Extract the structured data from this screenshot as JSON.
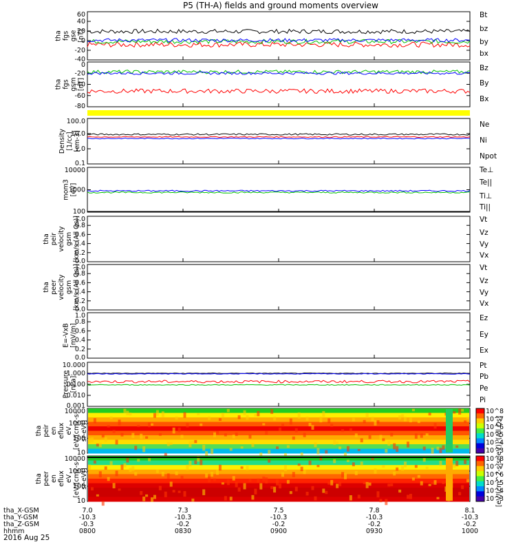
{
  "title": "P5 (TH-A) fields and ground moments overview",
  "date": "2016 Aug 25",
  "chart_data": [
    {
      "id": "p1",
      "type": "line",
      "ylabel": [
        "tha",
        "fgs",
        "gse",
        "[nT]"
      ],
      "yticks": [
        "60",
        "40",
        "20",
        "0",
        "-20",
        "-40"
      ],
      "ylim": [
        -45,
        65
      ],
      "series": [
        {
          "name": "Bt",
          "color": "#000000",
          "base": 20,
          "amp": 5
        },
        {
          "name": "bz",
          "color": "#ff0000",
          "base": -10,
          "amp": 6
        },
        {
          "name": "by",
          "color": "#00c000",
          "base": -3,
          "amp": 5
        },
        {
          "name": "bx",
          "color": "#0000ff",
          "base": 0,
          "amp": 4
        }
      ]
    },
    {
      "id": "p2",
      "type": "line",
      "ylabel": [
        "tha",
        "fgs",
        "gsm",
        "[nT]"
      ],
      "yticks": [
        "0",
        "-20",
        "-40",
        "-60",
        "-80"
      ],
      "ylim": [
        -90,
        10
      ],
      "series": [
        {
          "name": "Bz",
          "color": "#ff0000",
          "base": -55,
          "amp": 5
        },
        {
          "name": "By",
          "color": "#00c000",
          "base": -12,
          "amp": 4
        },
        {
          "name": "Bx",
          "color": "#0000ff",
          "base": -15,
          "amp": 3
        }
      ]
    },
    {
      "id": "p3",
      "type": "bar",
      "label": "",
      "color": "#ffff00"
    },
    {
      "id": "p4",
      "type": "line",
      "ylabel": [
        "Density",
        "[1/cc]",
        "[cm-3]"
      ],
      "yticks": [
        "100.0",
        "10.0",
        "1.0",
        "0.1"
      ],
      "log": true,
      "series": [
        {
          "name": "Ne",
          "color": "#ff0000",
          "base": 0.78,
          "amp": 0.03
        },
        {
          "name": "Ni",
          "color": "#000000",
          "base": 0.95,
          "amp": 0.05
        },
        {
          "name": "Npot",
          "color": "#0000ff",
          "base": 0.68,
          "amp": 0.03
        }
      ]
    },
    {
      "id": "p5",
      "type": "line",
      "ylabel": [
        "mom3",
        "[eV]"
      ],
      "yticks": [
        "10000",
        "1000",
        "100"
      ],
      "log": true,
      "series": [
        {
          "name": "Te⊥",
          "color": "#ff0000",
          "base": 1.9,
          "amp": 0.03
        },
        {
          "name": "Te||",
          "color": "#000000",
          "base": 1.75,
          "amp": 0.03
        },
        {
          "name": "Ti⊥",
          "color": "#0000ff",
          "base": 2.95,
          "amp": 0.03
        },
        {
          "name": "Ti||",
          "color": "#00c000",
          "base": 2.88,
          "amp": 0.03
        }
      ]
    },
    {
      "id": "p6",
      "type": "line",
      "ylabel": [
        "tha",
        "peir",
        "velocity",
        "gsm",
        "[km/s (All Qs)]"
      ],
      "yticks": [
        "1.0",
        "0.8",
        "0.6",
        "0.4",
        "0.2",
        "0.0"
      ],
      "series": [
        {
          "name": "Vt",
          "color": "#000000"
        },
        {
          "name": "Vz",
          "color": "#ff0000"
        },
        {
          "name": "Vy",
          "color": "#00c000"
        },
        {
          "name": "Vx",
          "color": "#0000ff"
        }
      ]
    },
    {
      "id": "p7",
      "type": "line",
      "ylabel": [
        "tha",
        "peer",
        "velocity",
        "gsm",
        "[km/s (All Qs)]"
      ],
      "yticks": [
        "1.0",
        "0.8",
        "0.6",
        "0.4",
        "0.2",
        "0.0"
      ],
      "series": [
        {
          "name": "Vt",
          "color": "#000000"
        },
        {
          "name": "Vz",
          "color": "#ff0000"
        },
        {
          "name": "Vy",
          "color": "#00c000"
        },
        {
          "name": "Vx",
          "color": "#0000ff"
        }
      ]
    },
    {
      "id": "p8",
      "type": "line",
      "ylabel": [
        "E=-VxB",
        "[mV/m]"
      ],
      "yticks": [
        "1.0",
        "0.8",
        "0.6",
        "0.4",
        "0.2",
        "0.0"
      ],
      "series": [
        {
          "name": "Ez",
          "color": "#ff0000"
        },
        {
          "name": "Ey",
          "color": "#00c000"
        },
        {
          "name": "Ex",
          "color": "#0000ff"
        }
      ]
    },
    {
      "id": "p9",
      "type": "line",
      "ylabel": [
        "Pressure",
        "[nPa]"
      ],
      "yticks": [
        "10.000",
        "1.000",
        "0.100",
        "0.010",
        "0.001"
      ],
      "log": true,
      "series": [
        {
          "name": "Pt",
          "color": "#000000",
          "base": 0.0,
          "amp": 0.03
        },
        {
          "name": "Pb",
          "color": "#ff0000",
          "base": -0.75,
          "amp": 0.12
        },
        {
          "name": "Pe",
          "color": "#00c000",
          "base": -1.05,
          "amp": 0.04
        },
        {
          "name": "Pi",
          "color": "#0000ff",
          "base": -0.05,
          "amp": 0.03
        }
      ]
    },
    {
      "id": "p10",
      "type": "heatmap",
      "ylabel": [
        "tha",
        "peir",
        "en",
        "eflux",
        "eV",
        "[eV/(cm2-s-",
        "sr-eV)]"
      ],
      "yticks": [
        "10000",
        "1000",
        "100",
        "10"
      ],
      "colorbar": {
        "label": "[eV/(cm^2-s-sr-eV)] (All Qs)",
        "ticks": [
          "10^8",
          "10^7",
          "10^6",
          "10^5",
          "10^4",
          "10^3"
        ]
      }
    },
    {
      "id": "p11",
      "type": "heatmap",
      "ylabel": [
        "tha",
        "peer",
        "en",
        "eflux",
        "eV",
        "[eV/(cm2-s-",
        "sr-eV)]"
      ],
      "yticks": [
        "10000",
        "1000",
        "100",
        "10"
      ],
      "colorbar": {
        "ticks": [
          "10^8",
          "10^7",
          "10^6",
          "10^5",
          "10^4",
          "10^3"
        ]
      }
    }
  ],
  "xaxis": {
    "rows": [
      {
        "label": "tha_X-GSM",
        "values": [
          "7.0",
          "7.3",
          "7.5",
          "7.8",
          "8.1"
        ]
      },
      {
        "label": "tha_Y-GSM",
        "values": [
          "-10.3",
          "-10.3",
          "-10.3",
          "-10.3",
          "-10.3"
        ]
      },
      {
        "label": "tha_Z-GSM",
        "values": [
          "-0.3",
          "-0.2",
          "-0.2",
          "-0.2",
          "-0.2"
        ]
      },
      {
        "label": "hhmm",
        "values": [
          "0800",
          "0830",
          "0900",
          "0930",
          "1000"
        ]
      }
    ]
  },
  "cb_label": "[eV/(cm^2-s-sr-eV)] (All Qs)"
}
